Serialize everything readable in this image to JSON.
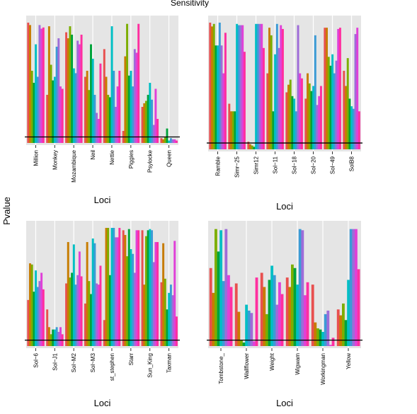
{
  "figure": {
    "title": "Sensitivity",
    "ylabel": "Pvalue",
    "line_value": 0.05
  },
  "colors": [
    "#e8504f",
    "#c77c00",
    "#7cae00",
    "#00a33a",
    "#00bfc4",
    "#3c9bd6",
    "#9e6cd8",
    "#e040d8",
    "#ff2fa0"
  ],
  "chart_data": [
    {
      "type": "bar",
      "xlabel": "Loci",
      "ylim": [
        0,
        1
      ],
      "categories": [
        "Million",
        "Monkey",
        "Mozambique",
        "Neil",
        "Nettie",
        "Piggies",
        "Psylocke",
        "Queen"
      ],
      "groups": [
        [
          1.0,
          0.98,
          0.6,
          0.5,
          0.82,
          0.55,
          0.98,
          0.95,
          0.96
        ],
        [
          0.4,
          0.97,
          0.65,
          0.52,
          0.55,
          0.8,
          0.87,
          0.47,
          0.45
        ],
        [
          0.92,
          0.87,
          0.97,
          0.9,
          0.62,
          0.58,
          0.85,
          0.82,
          0.9
        ],
        [
          0.55,
          0.6,
          0.44,
          0.82,
          0.7,
          0.4,
          0.25,
          0.2,
          0.66
        ],
        [
          0.78,
          0.55,
          0.4,
          0.38,
          0.97,
          0.6,
          0.3,
          0.47,
          0.6
        ],
        [
          0.1,
          0.72,
          0.99,
          0.56,
          0.6,
          0.47,
          0.78,
          0.75,
          0.99
        ],
        [
          0.3,
          0.33,
          0.35,
          0.4,
          0.5,
          0.36,
          0.15,
          0.45,
          0.2
        ],
        [
          0.04,
          0.03,
          0.05,
          0.12,
          0.02,
          0.04,
          0.03,
          0.03,
          0.02
        ]
      ]
    },
    {
      "type": "bar",
      "xlabel": "Loci",
      "ylim": [
        0,
        1
      ],
      "categories": [
        "Ramble",
        "Simr~25",
        "Simr12",
        "Sol~11",
        "Sol~18",
        "Sol~20",
        "Sol~49",
        "SolB8"
      ],
      "groups": [
        [
          1.0,
          0.97,
          0.99,
          0.82,
          0.82,
          1.0,
          0.82,
          0.6,
          0.92
        ],
        [
          0.36,
          0.3,
          0.3,
          0.3,
          0.99,
          0.98,
          0.98,
          0.98,
          0.77
        ],
        [
          0.06,
          0.04,
          0.03,
          0.02,
          0.99,
          0.99,
          0.99,
          0.99,
          0.8
        ],
        [
          0.6,
          0.96,
          0.9,
          0.3,
          0.75,
          0.99,
          0.8,
          0.98,
          0.95
        ],
        [
          0.45,
          0.51,
          0.55,
          0.42,
          0.4,
          0.3,
          0.98,
          0.6,
          0.56
        ],
        [
          0.4,
          0.6,
          0.52,
          0.46,
          0.5,
          0.9,
          0.35,
          0.42,
          0.5
        ],
        [
          0.96,
          0.96,
          0.73,
          0.66,
          0.75,
          0.6,
          0.7,
          0.95,
          0.96
        ],
        [
          0.62,
          0.5,
          0.72,
          0.4,
          0.34,
          0.32,
          0.91,
          0.96,
          0.3
        ]
      ]
    },
    {
      "type": "bar",
      "xlabel": "Loci",
      "ylim": [
        0,
        1
      ],
      "categories": [
        "Sol~6",
        "Sol~J1",
        "Sol~M2",
        "Sol~M3",
        "st_stephen",
        "Starr",
        "Sun_King",
        "Taxman"
      ],
      "groups": [
        [
          0.39,
          0.7,
          0.69,
          0.46,
          0.64,
          0.5,
          0.55,
          0.62,
          0.48
        ],
        [
          0.31,
          0.16,
          0.1,
          0.14,
          0.14,
          0.16,
          0.12,
          0.16,
          0.1
        ],
        [
          0.53,
          0.88,
          0.58,
          0.62,
          0.86,
          0.52,
          0.6,
          0.8,
          0.59
        ],
        [
          0.36,
          0.88,
          0.55,
          0.44,
          0.91,
          0.87,
          0.53,
          0.52,
          0.68
        ],
        [
          0.22,
          1.0,
          1.0,
          0.6,
          1.0,
          1.0,
          0.92,
          0.92,
          1.0
        ],
        [
          0.98,
          0.94,
          0.76,
          0.99,
          0.82,
          0.78,
          0.62,
          0.98,
          0.98
        ],
        [
          0.98,
          0.52,
          0.93,
          0.98,
          0.99,
          0.98,
          0.71,
          0.88,
          0.88
        ],
        [
          0.54,
          0.87,
          0.57,
          0.31,
          0.45,
          0.52,
          0.43,
          0.89,
          0.25
        ]
      ]
    },
    {
      "type": "bar",
      "xlabel": "Loci",
      "ylim": [
        0,
        1
      ],
      "categories": [
        "Tombstone_",
        "Wallflower",
        "Weight",
        "Wigwam",
        "Workingman",
        "Yellow"
      ],
      "groups": [
        [
          0.66,
          0.45,
          0.99,
          0.8,
          0.98,
          0.55,
          0.99,
          0.6,
          0.5
        ],
        [
          0.53,
          0.29,
          0.05,
          0.03,
          0.35,
          0.3,
          0.28,
          0.04,
          0.58
        ],
        [
          0.62,
          0.5,
          0.27,
          0.56,
          0.68,
          0.6,
          0.35,
          0.54,
          0.44
        ],
        [
          0.58,
          0.5,
          0.69,
          0.66,
          0.52,
          0.99,
          0.98,
          0.43,
          0.54
        ],
        [
          0.52,
          0.2,
          0.15,
          0.14,
          0.12,
          0.27,
          0.3,
          0.01,
          0.07
        ],
        [
          0.31,
          0.26,
          0.36,
          0.22,
          0.56,
          0.99,
          0.99,
          0.99,
          0.65
        ]
      ]
    }
  ]
}
